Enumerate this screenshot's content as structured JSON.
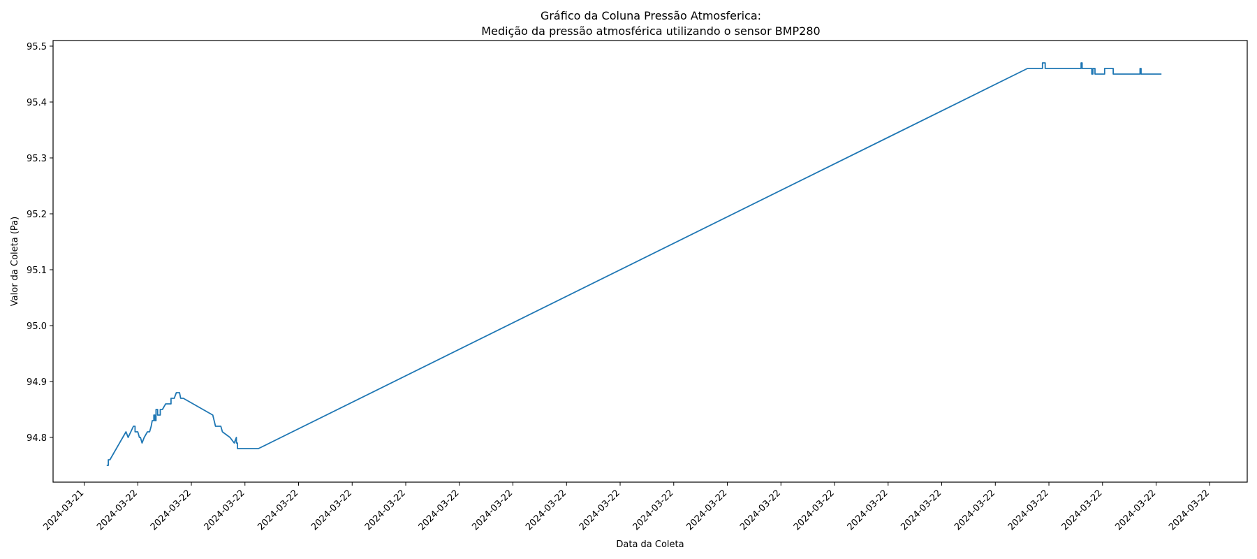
{
  "chart_data": {
    "type": "line",
    "title": "Gráfico da Coluna Pressão  Atmosferica:",
    "subtitle": "Medição da pressão atmosférica utilizando o sensor BMP280",
    "xlabel": "Data da Coleta",
    "ylabel": "Valor da Coleta (Pa)",
    "grid": false,
    "xlim": [
      -0.58,
      21.7
    ],
    "ylim": [
      94.72,
      95.51
    ],
    "x_tick_labels": [
      "2024-03-21",
      "2024-03-22",
      "2024-03-22",
      "2024-03-22",
      "2024-03-22",
      "2024-03-22",
      "2024-03-22",
      "2024-03-22",
      "2024-03-22",
      "2024-03-22",
      "2024-03-22",
      "2024-03-22",
      "2024-03-22",
      "2024-03-22",
      "2024-03-22",
      "2024-03-22",
      "2024-03-22",
      "2024-03-22",
      "2024-03-22",
      "2024-03-22",
      "2024-03-22",
      "2024-03-22"
    ],
    "y_ticks": [
      "94.8",
      "94.9",
      "95.0",
      "95.1",
      "95.2",
      "95.3",
      "95.4",
      "95.5"
    ],
    "series": [
      {
        "color": "#1f77b4",
        "x": [
          0.42,
          0.45,
          0.45,
          0.48,
          0.78,
          0.82,
          0.92,
          0.95,
          0.95,
          1.0,
          1.03,
          1.05,
          1.08,
          1.12,
          1.18,
          1.22,
          1.25,
          1.27,
          1.3,
          1.3,
          1.32,
          1.32,
          1.34,
          1.34,
          1.37,
          1.37,
          1.42,
          1.42,
          1.46,
          1.46,
          1.52,
          1.58,
          1.62,
          1.62,
          1.68,
          1.72,
          1.72,
          1.78,
          1.8,
          1.85,
          2.4,
          2.45,
          2.55,
          2.58,
          2.58,
          2.72,
          2.72,
          2.8,
          2.8,
          2.84,
          2.84,
          2.86,
          2.86,
          2.9,
          2.9,
          3.25,
          17.6,
          17.7,
          17.85,
          17.88,
          17.88,
          17.93,
          17.93,
          17.96,
          17.96,
          18.6,
          18.6,
          18.62,
          18.62,
          18.8,
          18.8,
          18.82,
          18.82,
          18.86,
          18.86,
          19.04,
          19.04,
          19.2,
          19.2,
          19.3,
          19.3,
          19.32,
          19.32,
          19.42,
          19.42,
          19.7,
          19.7,
          19.72,
          19.72,
          20.1
        ],
        "y": [
          94.75,
          94.75,
          94.76,
          94.76,
          94.81,
          94.8,
          94.82,
          94.82,
          94.81,
          94.81,
          94.8,
          94.8,
          94.79,
          94.8,
          94.81,
          94.81,
          94.82,
          94.83,
          94.83,
          94.84,
          94.84,
          94.83,
          94.83,
          94.85,
          94.85,
          94.84,
          94.84,
          94.85,
          94.85,
          94.85,
          94.86,
          94.86,
          94.86,
          94.87,
          94.87,
          94.88,
          94.88,
          94.88,
          94.87,
          94.87,
          94.84,
          94.82,
          94.82,
          94.81,
          94.81,
          94.8,
          94.8,
          94.79,
          94.79,
          94.8,
          94.79,
          94.79,
          94.78,
          94.78,
          94.78,
          94.78,
          95.46,
          95.46,
          95.46,
          95.46,
          95.47,
          95.47,
          95.46,
          95.46,
          95.46,
          95.46,
          95.47,
          95.47,
          95.46,
          95.46,
          95.45,
          95.45,
          95.46,
          95.46,
          95.45,
          95.45,
          95.46,
          95.46,
          95.45,
          95.45,
          95.45,
          95.45,
          95.45,
          95.45,
          95.45,
          95.45,
          95.46,
          95.46,
          95.45,
          95.45
        ]
      }
    ]
  }
}
